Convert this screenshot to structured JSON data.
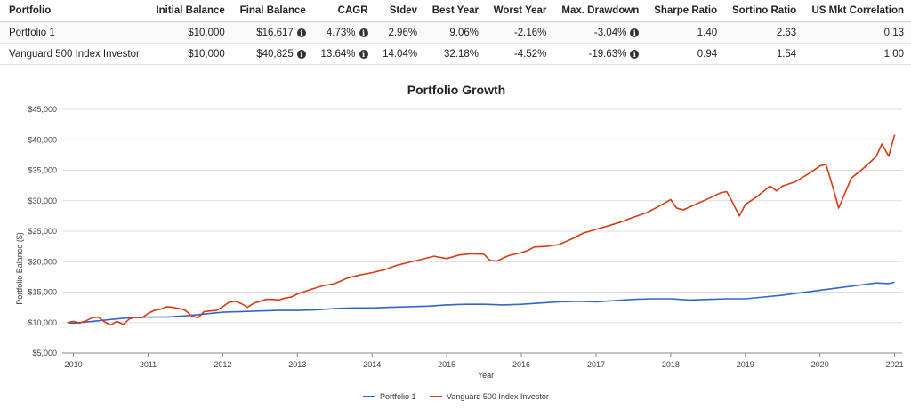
{
  "table": {
    "headers": [
      "Portfolio",
      "Initial Balance",
      "Final Balance",
      "CAGR",
      "Stdev",
      "Best Year",
      "Worst Year",
      "Max. Drawdown",
      "Sharpe Ratio",
      "Sortino Ratio",
      "US Mkt Correlation"
    ],
    "rows": [
      {
        "portfolio": "Portfolio 1",
        "initial": "$10,000",
        "final": "$16,617",
        "cagr": "4.73%",
        "stdev": "2.96%",
        "best": "9.06%",
        "worst": "-2.16%",
        "drawdown": "-3.04%",
        "sharpe": "1.40",
        "sortino": "2.63",
        "correlation": "0.13"
      },
      {
        "portfolio": "Vanguard 500 Index Investor",
        "initial": "$10,000",
        "final": "$40,825",
        "cagr": "13.64%",
        "stdev": "14.04%",
        "best": "32.18%",
        "worst": "-4.52%",
        "drawdown": "-19.63%",
        "sharpe": "0.94",
        "sortino": "1.54",
        "correlation": "1.00"
      }
    ],
    "info_icon": "info-circle-icon",
    "info_glyph": "i"
  },
  "chart_data": {
    "type": "line",
    "title": "Portfolio Growth",
    "xlabel": "Year",
    "ylabel": "Portfolio Balance ($)",
    "xlim": [
      2009.85,
      2021.1
    ],
    "ylim": [
      5000,
      45000
    ],
    "y_ticks": [
      "$5,000",
      "$10,000",
      "$15,000",
      "$20,000",
      "$25,000",
      "$30,000",
      "$35,000",
      "$40,000",
      "$45,000"
    ],
    "x_ticks": [
      "2010",
      "2011",
      "2012",
      "2013",
      "2014",
      "2015",
      "2016",
      "2017",
      "2018",
      "2019",
      "2020",
      "2021"
    ],
    "grid": true,
    "legend_position": "bottom",
    "series": [
      {
        "name": "Portfolio 1",
        "color": "#3366cc",
        "x": [
          2009.92,
          2010.0,
          2010.25,
          2010.5,
          2010.75,
          2011.0,
          2011.25,
          2011.5,
          2011.75,
          2012.0,
          2012.25,
          2012.5,
          2012.75,
          2013.0,
          2013.25,
          2013.5,
          2013.75,
          2014.0,
          2014.25,
          2014.5,
          2014.75,
          2015.0,
          2015.25,
          2015.5,
          2015.75,
          2016.0,
          2016.25,
          2016.5,
          2016.75,
          2017.0,
          2017.25,
          2017.5,
          2017.75,
          2018.0,
          2018.25,
          2018.5,
          2018.75,
          2019.0,
          2019.25,
          2019.5,
          2019.75,
          2020.0,
          2020.25,
          2020.5,
          2020.75,
          2020.92,
          2021.0
        ],
        "y": [
          10000,
          9900,
          10200,
          10500,
          10800,
          10900,
          10900,
          11100,
          11400,
          11700,
          11800,
          11900,
          12000,
          12000,
          12100,
          12300,
          12400,
          12400,
          12500,
          12600,
          12700,
          12900,
          13000,
          13000,
          12900,
          13000,
          13200,
          13400,
          13500,
          13400,
          13600,
          13800,
          13900,
          13900,
          13700,
          13800,
          13900,
          13900,
          14200,
          14500,
          14900,
          15300,
          15700,
          16100,
          16500,
          16400,
          16617
        ]
      },
      {
        "name": "Vanguard 500 Index Investor",
        "color": "#dc3912",
        "x": [
          2009.92,
          2010.0,
          2010.08,
          2010.17,
          2010.25,
          2010.33,
          2010.42,
          2010.5,
          2010.58,
          2010.67,
          2010.75,
          2010.83,
          2010.92,
          2011.0,
          2011.08,
          2011.17,
          2011.25,
          2011.33,
          2011.42,
          2011.5,
          2011.58,
          2011.67,
          2011.75,
          2011.83,
          2011.92,
          2012.0,
          2012.08,
          2012.17,
          2012.25,
          2012.33,
          2012.42,
          2012.5,
          2012.58,
          2012.67,
          2012.75,
          2012.83,
          2012.92,
          2013.0,
          2013.17,
          2013.33,
          2013.5,
          2013.67,
          2013.83,
          2014.0,
          2014.17,
          2014.33,
          2014.5,
          2014.67,
          2014.83,
          2015.0,
          2015.17,
          2015.33,
          2015.5,
          2015.58,
          2015.67,
          2015.83,
          2016.0,
          2016.08,
          2016.17,
          2016.33,
          2016.5,
          2016.67,
          2016.83,
          2017.0,
          2017.17,
          2017.33,
          2017.5,
          2017.67,
          2017.83,
          2018.0,
          2018.08,
          2018.17,
          2018.33,
          2018.5,
          2018.67,
          2018.75,
          2018.83,
          2018.92,
          2019.0,
          2019.17,
          2019.33,
          2019.42,
          2019.5,
          2019.67,
          2019.83,
          2020.0,
          2020.08,
          2020.17,
          2020.25,
          2020.42,
          2020.58,
          2020.75,
          2020.83,
          2020.92,
          2021.0
        ],
        "y": [
          10000,
          10200,
          9900,
          10300,
          10800,
          10900,
          10100,
          9600,
          10200,
          9700,
          10600,
          10900,
          10800,
          11500,
          12000,
          12200,
          12600,
          12500,
          12300,
          12000,
          11100,
          10800,
          11800,
          11900,
          12000,
          12600,
          13300,
          13500,
          13100,
          12500,
          13200,
          13500,
          13800,
          13800,
          13700,
          14000,
          14200,
          14700,
          15400,
          16000,
          16400,
          17300,
          17800,
          18200,
          18700,
          19400,
          19900,
          20400,
          20900,
          20500,
          21100,
          21300,
          21200,
          20200,
          20100,
          21000,
          21500,
          21800,
          22400,
          22500,
          22800,
          23700,
          24700,
          25300,
          25900,
          26500,
          27300,
          28000,
          29000,
          30200,
          28800,
          28500,
          29400,
          30300,
          31300,
          31500,
          29700,
          27500,
          29400,
          30800,
          32400,
          31600,
          32400,
          33100,
          34300,
          35700,
          36000,
          32300,
          28800,
          33700,
          35300,
          37200,
          39300,
          37300,
          40825
        ]
      }
    ]
  }
}
